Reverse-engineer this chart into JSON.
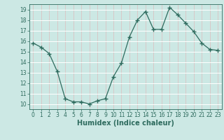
{
  "x": [
    0,
    1,
    2,
    3,
    4,
    5,
    6,
    7,
    8,
    9,
    10,
    11,
    12,
    13,
    14,
    15,
    16,
    17,
    18,
    19,
    20,
    21,
    22,
    23
  ],
  "y": [
    15.8,
    15.4,
    14.8,
    13.1,
    10.5,
    10.2,
    10.2,
    10.0,
    10.3,
    10.5,
    12.6,
    13.9,
    16.4,
    18.0,
    18.8,
    17.1,
    17.1,
    19.2,
    18.5,
    17.7,
    16.9,
    15.8,
    15.2,
    15.1
  ],
  "xlabel": "Humidex (Indice chaleur)",
  "ylim": [
    9.5,
    19.5
  ],
  "xlim": [
    -0.5,
    23.5
  ],
  "yticks": [
    10,
    11,
    12,
    13,
    14,
    15,
    16,
    17,
    18,
    19
  ],
  "xticks": [
    0,
    1,
    2,
    3,
    4,
    5,
    6,
    7,
    8,
    9,
    10,
    11,
    12,
    13,
    14,
    15,
    16,
    17,
    18,
    19,
    20,
    21,
    22,
    23
  ],
  "line_color": "#2e6b5e",
  "bg_color": "#cce8e4",
  "grid_h_color": "#ffffff",
  "grid_v_color": "#ddbcbc",
  "tick_fontsize": 5.5,
  "xlabel_fontsize": 7
}
